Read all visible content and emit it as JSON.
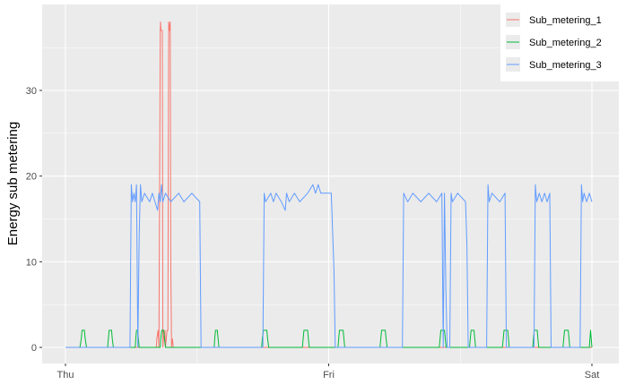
{
  "chart_data": {
    "type": "line",
    "title": "",
    "xlabel": "",
    "ylabel": "Energy sub metering",
    "x_ticks": [
      "Thu",
      "Fri",
      "Sat"
    ],
    "x_range_days": [
      0,
      2
    ],
    "y_ticks": [
      0,
      10,
      20,
      30
    ],
    "ylim": [
      -2,
      40
    ],
    "grid": true,
    "legend_position": "top-right",
    "colors": {
      "panel_bg": "#ebebeb",
      "grid": "#ffffff",
      "Sub_metering_1": "#f8766d",
      "Sub_metering_2": "#00ba38",
      "Sub_metering_3": "#619cff"
    },
    "series": [
      {
        "name": "Sub_metering_1",
        "color": "#f8766d",
        "points": [
          [
            0,
            0
          ],
          [
            0.345,
            0
          ],
          [
            0.347,
            1
          ],
          [
            0.352,
            2
          ],
          [
            0.355,
            0
          ],
          [
            0.36,
            37
          ],
          [
            0.361,
            38
          ],
          [
            0.363,
            37
          ],
          [
            0.368,
            37
          ],
          [
            0.37,
            0
          ],
          [
            0.372,
            1
          ],
          [
            0.378,
            2
          ],
          [
            0.38,
            0
          ],
          [
            0.383,
            1
          ],
          [
            0.386,
            2
          ],
          [
            0.389,
            2
          ],
          [
            0.392,
            38
          ],
          [
            0.395,
            37
          ],
          [
            0.398,
            38
          ],
          [
            0.4,
            10
          ],
          [
            0.403,
            0
          ],
          [
            0.406,
            1
          ],
          [
            0.41,
            0
          ],
          [
            2,
            0
          ]
        ]
      },
      {
        "name": "Sub_metering_2",
        "color": "#00ba38",
        "points": [
          [
            0,
            0
          ],
          [
            0.055,
            0
          ],
          [
            0.06,
            1
          ],
          [
            0.063,
            2
          ],
          [
            0.072,
            2
          ],
          [
            0.075,
            1
          ],
          [
            0.08,
            0
          ],
          [
            0.16,
            0
          ],
          [
            0.163,
            1
          ],
          [
            0.166,
            2
          ],
          [
            0.175,
            2
          ],
          [
            0.178,
            1
          ],
          [
            0.182,
            0
          ],
          [
            0.265,
            0
          ],
          [
            0.267,
            1
          ],
          [
            0.27,
            2
          ],
          [
            0.274,
            2
          ],
          [
            0.277,
            1
          ],
          [
            0.28,
            0
          ],
          [
            0.36,
            0
          ],
          [
            0.362,
            1
          ],
          [
            0.366,
            2
          ],
          [
            0.373,
            2
          ],
          [
            0.376,
            1
          ],
          [
            0.38,
            0
          ],
          [
            0.565,
            0
          ],
          [
            0.567,
            1
          ],
          [
            0.57,
            2
          ],
          [
            0.577,
            2
          ],
          [
            0.58,
            1
          ],
          [
            0.583,
            0
          ],
          [
            0.745,
            0
          ],
          [
            0.748,
            1
          ],
          [
            0.752,
            2
          ],
          [
            0.765,
            2
          ],
          [
            0.768,
            1
          ],
          [
            0.772,
            0
          ],
          [
            0.9,
            0
          ],
          [
            0.903,
            1
          ],
          [
            0.906,
            2
          ],
          [
            0.92,
            2
          ],
          [
            0.923,
            1
          ],
          [
            0.926,
            0
          ],
          [
            1.035,
            0
          ],
          [
            1.038,
            1
          ],
          [
            1.041,
            2
          ],
          [
            1.055,
            2
          ],
          [
            1.058,
            1
          ],
          [
            1.061,
            0
          ],
          [
            1.195,
            0
          ],
          [
            1.198,
            1
          ],
          [
            1.201,
            2
          ],
          [
            1.215,
            2
          ],
          [
            1.218,
            1
          ],
          [
            1.222,
            0
          ],
          [
            1.42,
            0
          ],
          [
            1.423,
            1
          ],
          [
            1.426,
            2
          ],
          [
            1.44,
            2
          ],
          [
            1.443,
            1
          ],
          [
            1.446,
            0
          ],
          [
            1.535,
            0
          ],
          [
            1.538,
            1
          ],
          [
            1.541,
            2
          ],
          [
            1.552,
            2
          ],
          [
            1.555,
            1
          ],
          [
            1.558,
            0
          ],
          [
            1.66,
            0
          ],
          [
            1.663,
            1
          ],
          [
            1.666,
            2
          ],
          [
            1.68,
            2
          ],
          [
            1.683,
            1
          ],
          [
            1.686,
            0
          ],
          [
            1.775,
            0
          ],
          [
            1.778,
            1
          ],
          [
            1.781,
            2
          ],
          [
            1.792,
            2
          ],
          [
            1.795,
            1
          ],
          [
            1.798,
            0
          ],
          [
            1.89,
            0
          ],
          [
            1.893,
            1
          ],
          [
            1.896,
            2
          ],
          [
            1.91,
            2
          ],
          [
            1.913,
            1
          ],
          [
            1.916,
            0
          ],
          [
            1.99,
            0
          ],
          [
            1.995,
            2
          ],
          [
            2,
            0
          ]
        ]
      },
      {
        "name": "Sub_metering_3",
        "color": "#619cff",
        "points": [
          [
            0,
            0
          ],
          [
            0.245,
            0
          ],
          [
            0.25,
            19
          ],
          [
            0.255,
            17
          ],
          [
            0.26,
            18
          ],
          [
            0.265,
            17
          ],
          [
            0.27,
            19
          ],
          [
            0.275,
            0
          ],
          [
            0.28,
            13
          ],
          [
            0.285,
            19
          ],
          [
            0.29,
            17
          ],
          [
            0.3,
            18
          ],
          [
            0.32,
            17
          ],
          [
            0.33,
            18
          ],
          [
            0.34,
            17
          ],
          [
            0.35,
            16
          ],
          [
            0.355,
            18
          ],
          [
            0.36,
            17
          ],
          [
            0.365,
            19
          ],
          [
            0.37,
            17
          ],
          [
            0.38,
            18
          ],
          [
            0.4,
            17
          ],
          [
            0.43,
            18
          ],
          [
            0.45,
            17
          ],
          [
            0.48,
            18
          ],
          [
            0.51,
            17
          ],
          [
            0.515,
            0
          ],
          [
            0.75,
            0
          ],
          [
            0.755,
            18
          ],
          [
            0.76,
            17
          ],
          [
            0.78,
            18
          ],
          [
            0.79,
            17
          ],
          [
            0.8,
            18
          ],
          [
            0.82,
            17
          ],
          [
            0.835,
            16
          ],
          [
            0.84,
            18
          ],
          [
            0.85,
            17
          ],
          [
            0.87,
            18
          ],
          [
            0.89,
            17
          ],
          [
            0.92,
            18
          ],
          [
            0.94,
            19
          ],
          [
            0.95,
            18
          ],
          [
            0.96,
            19
          ],
          [
            0.97,
            18
          ],
          [
            0.99,
            18
          ],
          [
            1.01,
            18
          ],
          [
            1.02,
            9
          ],
          [
            1.025,
            0
          ],
          [
            1.28,
            0
          ],
          [
            1.285,
            18
          ],
          [
            1.3,
            17
          ],
          [
            1.32,
            18
          ],
          [
            1.35,
            17
          ],
          [
            1.38,
            18
          ],
          [
            1.41,
            17
          ],
          [
            1.43,
            18
          ],
          [
            1.435,
            0
          ],
          [
            1.44,
            18
          ],
          [
            1.445,
            7
          ],
          [
            1.45,
            0
          ],
          [
            1.46,
            0
          ],
          [
            1.465,
            18
          ],
          [
            1.47,
            17
          ],
          [
            1.49,
            18
          ],
          [
            1.52,
            17
          ],
          [
            1.525,
            12
          ],
          [
            1.53,
            0
          ],
          [
            1.6,
            0
          ],
          [
            1.605,
            19
          ],
          [
            1.61,
            17
          ],
          [
            1.62,
            18
          ],
          [
            1.65,
            17
          ],
          [
            1.67,
            18
          ],
          [
            1.675,
            0
          ],
          [
            1.78,
            0
          ],
          [
            1.785,
            19
          ],
          [
            1.79,
            17
          ],
          [
            1.8,
            18
          ],
          [
            1.81,
            17
          ],
          [
            1.82,
            18
          ],
          [
            1.83,
            17
          ],
          [
            1.84,
            18
          ],
          [
            1.845,
            0
          ],
          [
            1.85,
            0
          ],
          [
            1.955,
            0
          ],
          [
            1.96,
            19
          ],
          [
            1.965,
            17
          ],
          [
            1.97,
            18
          ],
          [
            1.98,
            17
          ],
          [
            1.99,
            18
          ],
          [
            2,
            17
          ]
        ]
      }
    ]
  }
}
